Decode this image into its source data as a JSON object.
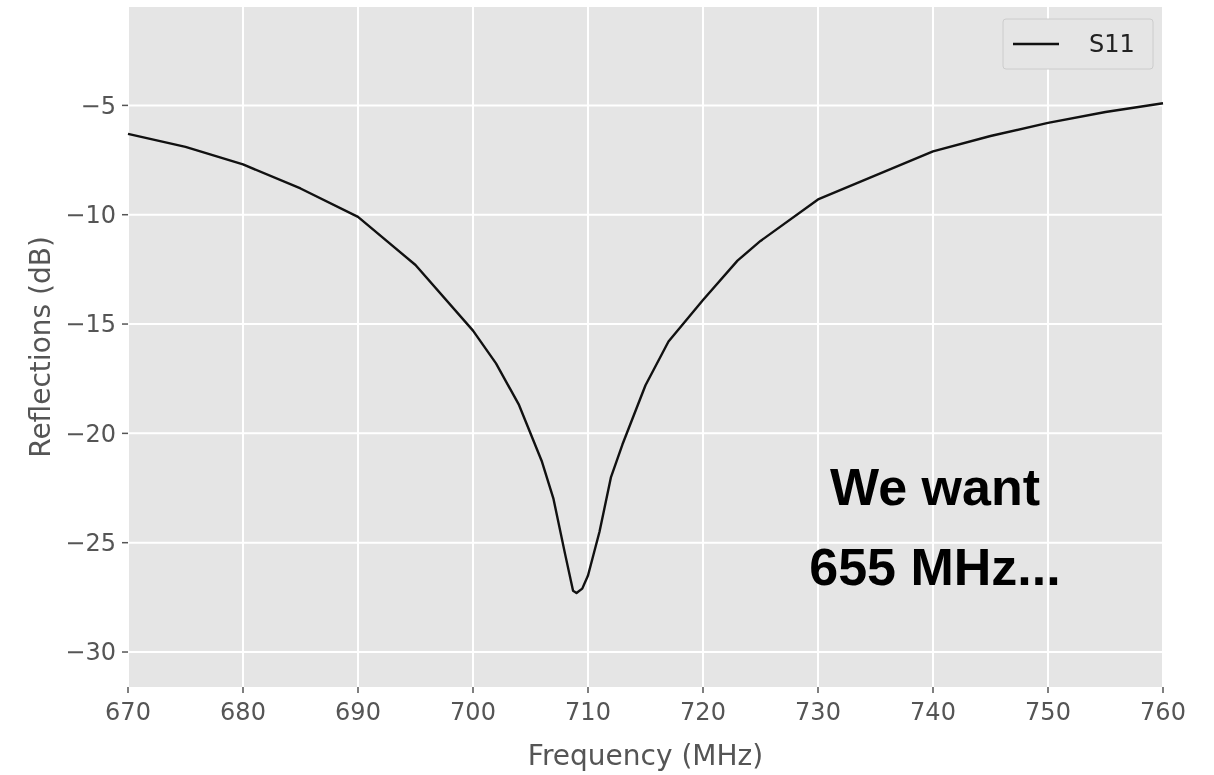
{
  "chart_data": {
    "type": "line",
    "xlabel": "Frequency (MHz)",
    "ylabel": "Reflections (dB)",
    "xlim": [
      670,
      760
    ],
    "ylim": [
      -31.6,
      -0.5
    ],
    "xticks": [
      670,
      680,
      690,
      700,
      710,
      720,
      730,
      740,
      750,
      760
    ],
    "yticks": [
      {
        "value": -5,
        "label": "−5"
      },
      {
        "value": -10,
        "label": "−10"
      },
      {
        "value": -15,
        "label": "−15"
      },
      {
        "value": -20,
        "label": "−20"
      },
      {
        "value": -25,
        "label": "−25"
      },
      {
        "value": -30,
        "label": "−30"
      }
    ],
    "grid": true,
    "legend": "top right",
    "annotations": [
      "We want\n655 MHz..."
    ],
    "series": [
      {
        "name": "S11",
        "color": "#111111",
        "x": [
          670,
          675,
          680,
          685,
          690,
          695,
          700,
          702,
          704,
          706,
          707,
          708,
          708.7,
          709,
          709.5,
          710,
          711,
          712,
          713,
          715,
          717,
          720,
          723,
          725,
          730,
          735,
          740,
          745,
          750,
          755,
          760
        ],
        "values": [
          -6.3,
          -6.9,
          -7.7,
          -8.8,
          -10.1,
          -12.3,
          -15.3,
          -16.8,
          -18.7,
          -21.3,
          -23,
          -25.5,
          -27.2,
          -27.3,
          -27.1,
          -26.5,
          -24.5,
          -22,
          -20.5,
          -17.8,
          -15.8,
          -13.9,
          -12.1,
          -11.2,
          -9.3,
          -8.2,
          -7.1,
          -6.4,
          -5.8,
          -5.3,
          -4.9
        ]
      }
    ]
  }
}
